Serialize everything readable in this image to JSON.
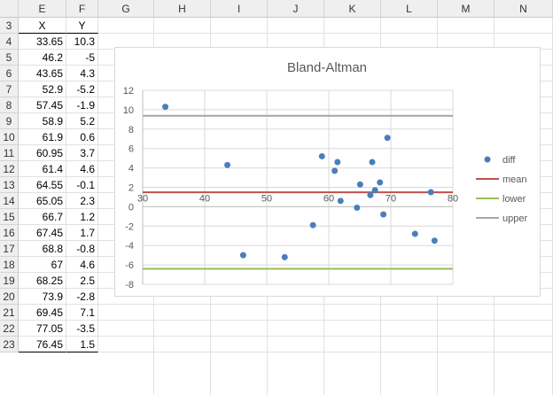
{
  "columns": [
    "E",
    "F",
    "G",
    "H",
    "I",
    "J",
    "K",
    "L",
    "M",
    "N"
  ],
  "rows": [
    3,
    4,
    5,
    6,
    7,
    8,
    9,
    10,
    11,
    12,
    13,
    14,
    15,
    16,
    17,
    18,
    19,
    20,
    21,
    22,
    23
  ],
  "table": {
    "header": {
      "x": "X",
      "y": "Y"
    },
    "x_values": [
      "33.65",
      "46.2",
      "43.65",
      "52.9",
      "57.45",
      "58.9",
      "61.9",
      "60.95",
      "61.4",
      "64.55",
      "65.05",
      "66.7",
      "67.45",
      "68.8",
      "67",
      "68.25",
      "73.9",
      "69.45",
      "77.05",
      "76.45"
    ],
    "y_values": [
      "10.3",
      "-5",
      "4.3",
      "-5.2",
      "-1.9",
      "5.2",
      "0.6",
      "3.7",
      "4.6",
      "-0.1",
      "2.3",
      "1.2",
      "1.7",
      "-0.8",
      "4.6",
      "2.5",
      "-2.8",
      "7.1",
      "-3.5",
      "1.5"
    ]
  },
  "colors": {
    "points": "#4a7ebb",
    "mean": "#c0504d",
    "lower": "#9bbb59",
    "upper": "#a6a6a6"
  },
  "chart_data": {
    "type": "scatter",
    "title": "Bland-Altman",
    "xlabel": "",
    "ylabel": "",
    "xlim": [
      30,
      80
    ],
    "ylim": [
      -8,
      12
    ],
    "x_ticks": [
      "30",
      "40",
      "50",
      "60",
      "70",
      "80"
    ],
    "y_ticks": [
      "12",
      "10",
      "8",
      "6",
      "4",
      "2",
      "0",
      "-2",
      "-4",
      "-6",
      "-8"
    ],
    "grid": true,
    "legend_position": "right",
    "series": [
      {
        "name": "diff",
        "kind": "points",
        "x": [
          33.65,
          46.2,
          43.65,
          52.9,
          57.45,
          58.9,
          61.9,
          60.95,
          61.4,
          64.55,
          65.05,
          66.7,
          67.45,
          68.8,
          67,
          68.25,
          73.9,
          69.45,
          77.05,
          76.45
        ],
        "y": [
          10.3,
          -5,
          4.3,
          -5.2,
          -1.9,
          5.2,
          0.6,
          3.7,
          4.6,
          -0.1,
          2.3,
          1.2,
          1.7,
          -0.8,
          4.6,
          2.5,
          -2.8,
          7.1,
          -3.5,
          1.5
        ]
      },
      {
        "name": "mean",
        "kind": "hline",
        "y": 1.49
      },
      {
        "name": "lower",
        "kind": "hline",
        "y": -6.4
      },
      {
        "name": "upper",
        "kind": "hline",
        "y": 9.38
      }
    ]
  }
}
